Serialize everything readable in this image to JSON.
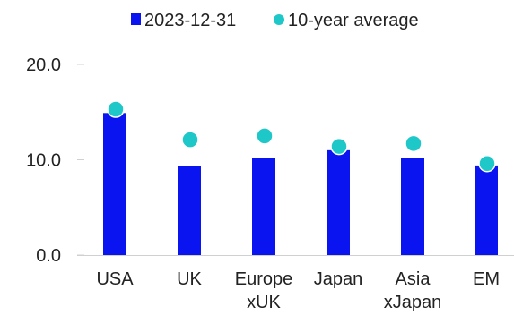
{
  "chart_data": {
    "type": "bar",
    "categories": [
      [
        "USA"
      ],
      [
        "UK"
      ],
      [
        "Europe",
        "xUK"
      ],
      [
        "Japan"
      ],
      [
        "Asia",
        "xJapan"
      ],
      [
        "EM"
      ]
    ],
    "series": [
      {
        "name": "2023-12-31",
        "kind": "bar",
        "color": "#0a14f0",
        "values": [
          14.9,
          9.3,
          10.2,
          11.0,
          10.2,
          9.4
        ]
      },
      {
        "name": "10-year average",
        "kind": "dot",
        "color": "#1fc8c8",
        "values": [
          15.3,
          12.1,
          12.5,
          11.4,
          11.7,
          9.6
        ]
      }
    ],
    "yticks": [
      "0.0",
      "10.0",
      "20.0"
    ],
    "ylim": [
      0,
      20
    ],
    "grid": false,
    "legend_position": "top"
  }
}
